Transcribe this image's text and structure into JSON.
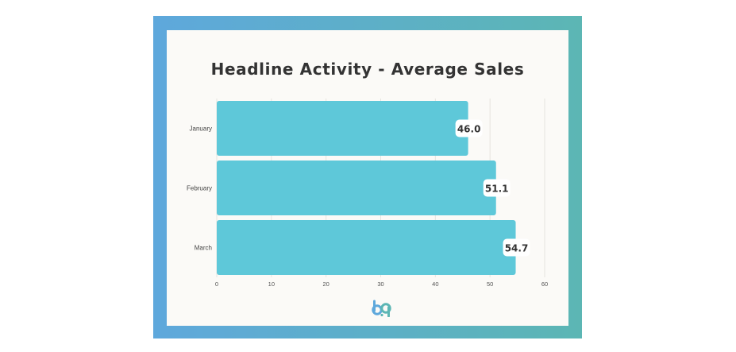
{
  "chart_data": {
    "type": "bar",
    "orientation": "horizontal",
    "title": "Headline Activity - Average Sales",
    "categories": [
      "January",
      "February",
      "March"
    ],
    "values": [
      46.0,
      51.1,
      54.7
    ],
    "data_labels": [
      "46.0",
      "51.1",
      "54.7"
    ],
    "xlim": [
      0,
      60
    ],
    "xticks": [
      0,
      10,
      20,
      30,
      40,
      50,
      60
    ],
    "xlabel": "",
    "ylabel": "",
    "grid": true,
    "legend": "none",
    "bar_color": "#5ec8d9",
    "frame_gradient": [
      "#5ea8dc",
      "#5cb6b4"
    ]
  },
  "brand": {
    "logo_icon": "bp-logo-icon",
    "logo_colors": [
      "#5ea8dc",
      "#5cb6b4"
    ]
  }
}
